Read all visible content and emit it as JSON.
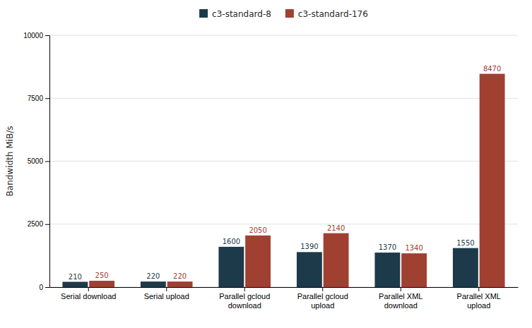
{
  "chart_data": {
    "type": "bar",
    "categories": [
      "Serial download",
      "Serial upload",
      "Parallel gcloud\ndownload",
      "Parallel gcloud\nupload",
      "Parallel XML\ndownload",
      "Parallel XML\nupload"
    ],
    "series": [
      {
        "name": "c3-standard-8",
        "color": "#1c3a4a",
        "values": [
          210,
          220,
          1600,
          1390,
          1370,
          1550
        ]
      },
      {
        "name": "c3-standard-176",
        "color": "#a04030",
        "values": [
          250,
          220,
          2050,
          2140,
          1340,
          8470
        ]
      }
    ],
    "ylabel": "Bandwidth MiB/s",
    "ylim": [
      0,
      10000
    ],
    "yticks": [
      0,
      2500,
      5000,
      7500,
      10000
    ],
    "grid": true,
    "legend": "top",
    "data_labels": true
  }
}
